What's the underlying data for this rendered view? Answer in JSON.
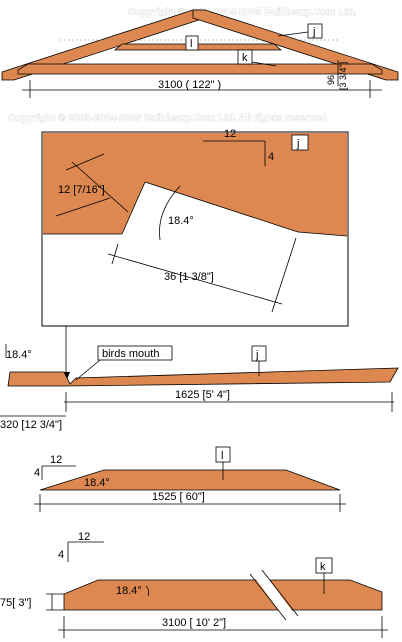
{
  "colors": {
    "timber": "#dd8850",
    "line": "#000000",
    "background": "#ffffff",
    "watermark": "#c8c8c8"
  },
  "copyright": {
    "top": "Copyright © 2003-2004-2005 Buildeazy.Com Ltd.",
    "middle": "Copyright © 2003-2004-2005 Buildeazy.Com Ltd. All rights reserved"
  },
  "roof": {
    "span_label": "3100 ( 122\" )",
    "height_label": "96",
    "height_sub_label": "[3 3/4\"]",
    "labels": {
      "j": "j",
      "k": "k",
      "l": "l"
    }
  },
  "detail": {
    "pitch_run": "12",
    "pitch_rise": "4",
    "depth_label": "12 [7/16\"]",
    "angle_label": "18.4°",
    "seat_label": "36 [1 3/8\"]",
    "rafter_label": "j"
  },
  "rafter_j": {
    "angle_label": "18.4°",
    "birds_mouth_label": "birds mouth",
    "length_label": "1625 [5' 4\"]",
    "offset_label": "320 [12 3/4\"]",
    "part_label": "j"
  },
  "collar_l": {
    "pitch_run": "12",
    "pitch_rise": "4",
    "angle_label": "18.4°",
    "length_label": "1525 [ 60\"]",
    "part_label": "l"
  },
  "beam_k": {
    "pitch_run": "12",
    "pitch_rise": "4",
    "angle_label": "18.4°",
    "height_label": "75[ 3\"]",
    "length_label": "3100 [ 10' 2\"]",
    "part_label": "k"
  }
}
